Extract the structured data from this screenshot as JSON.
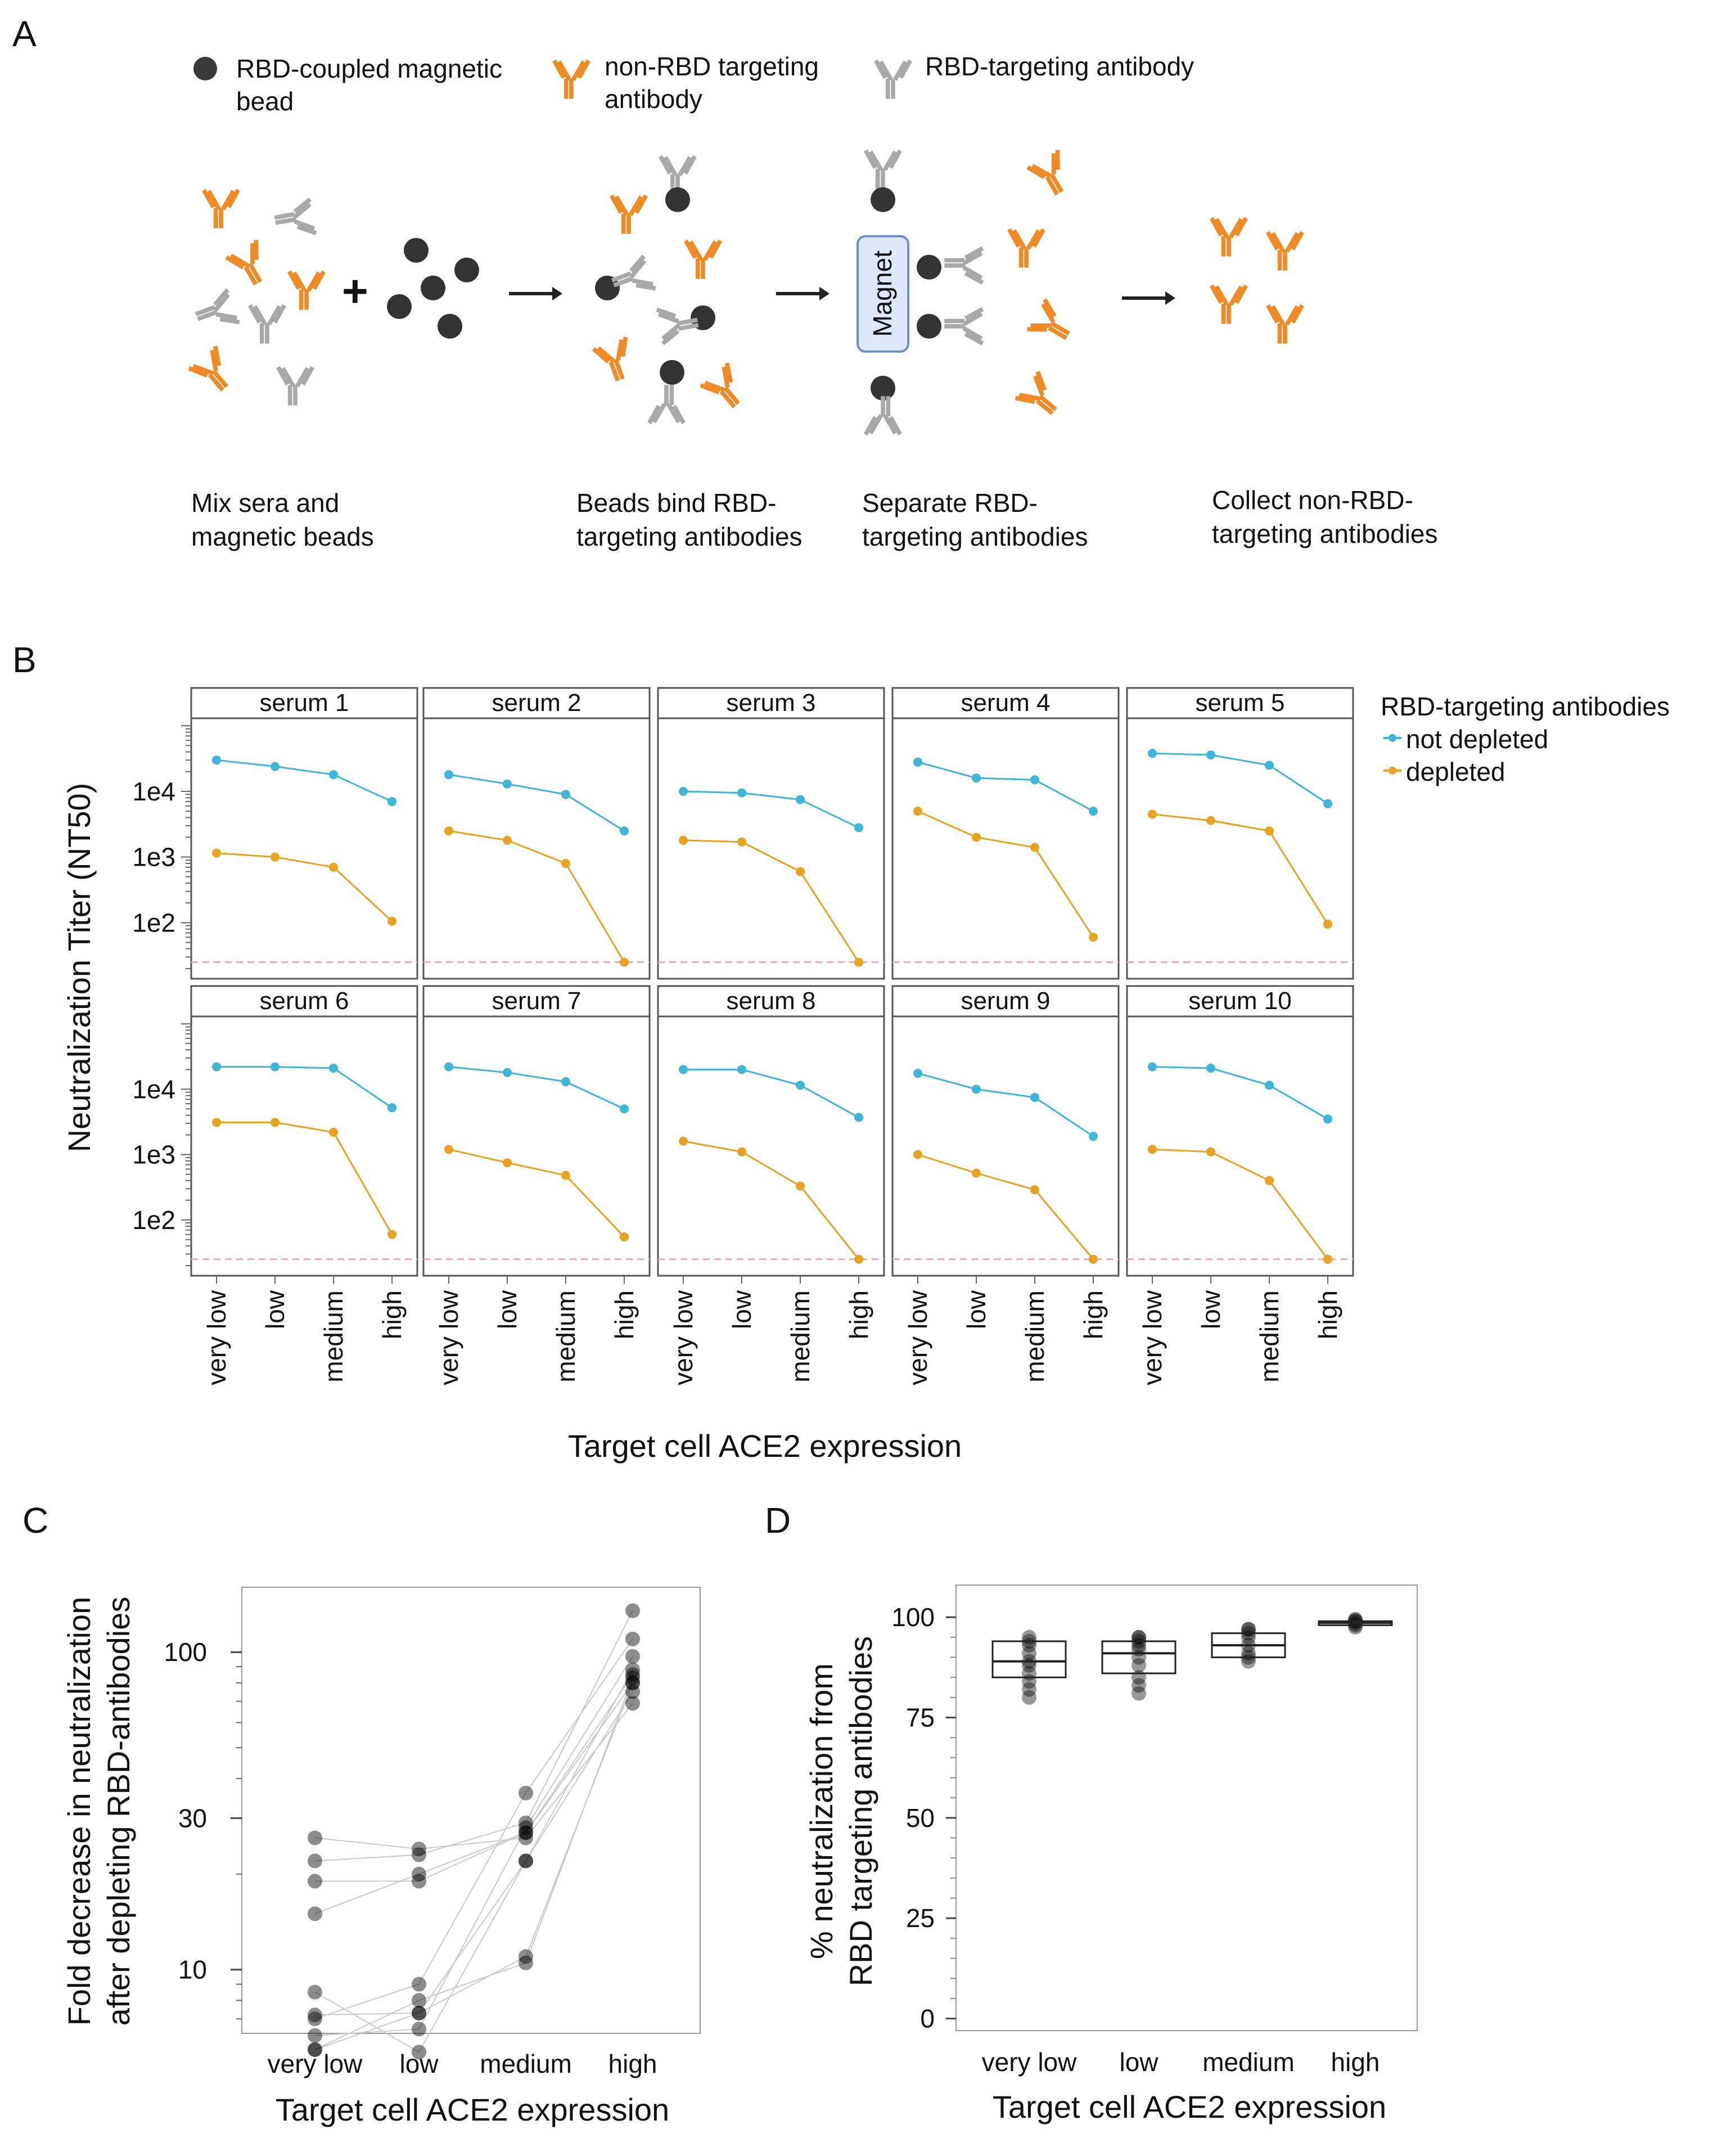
{
  "panels": {
    "a": "A",
    "b": "B",
    "c": "C",
    "d": "D"
  },
  "panel_a": {
    "legend": {
      "bead": [
        "RBD-coupled magnetic",
        "bead"
      ],
      "non_rbd": [
        "non-RBD targeting",
        "antibody"
      ],
      "rbd": "RBD-targeting antibody"
    },
    "magnet": "Magnet",
    "steps": [
      [
        "Mix sera and",
        "magnetic beads"
      ],
      [
        "Beads bind RBD-",
        "targeting antibodies"
      ],
      [
        "Separate RBD-",
        "targeting antibodies"
      ],
      [
        "Collect non-RBD-",
        "targeting antibodies"
      ]
    ],
    "plus": "+",
    "colors": {
      "orange": "#f08a24",
      "gray": "#a8a8a8",
      "bead": "#333333"
    }
  },
  "chart_data": [
    {
      "type": "line",
      "panel": "B",
      "facets": [
        "serum 1",
        "serum 2",
        "serum 3",
        "serum 4",
        "serum 5",
        "serum 6",
        "serum 7",
        "serum 8",
        "serum 9",
        "serum 10"
      ],
      "categories": [
        "very low",
        "low",
        "medium",
        "high"
      ],
      "ylabel": "Neutralization Titer (NT50)",
      "xlabel": "Target cell ACE2 expression",
      "yscale": "log",
      "ylim": [
        14,
        130000
      ],
      "yticks": [
        100,
        1000,
        10000
      ],
      "ytick_labels": [
        "1e2",
        "1e3",
        "1e4"
      ],
      "limit_of_detection": 25,
      "legend_title": "RBD-targeting antibodies",
      "series": [
        {
          "name": "not depleted",
          "color": "#3fb5d8",
          "values": [
            [
              30000,
              24000,
              18000,
              7000
            ],
            [
              18000,
              13000,
              9000,
              2500
            ],
            [
              10000,
              9500,
              7500,
              2800
            ],
            [
              28000,
              16000,
              15000,
              5000
            ],
            [
              38000,
              36000,
              25000,
              6500
            ],
            [
              22000,
              22000,
              21000,
              5200
            ],
            [
              22000,
              18000,
              13000,
              5000
            ],
            [
              20000,
              20000,
              11500,
              3700
            ],
            [
              17500,
              10000,
              7500,
              1900
            ],
            [
              22000,
              21000,
              11500,
              3500
            ]
          ]
        },
        {
          "name": "depleted",
          "color": "#e8a322",
          "values": [
            [
              1150,
              1000,
              700,
              105
            ],
            [
              2500,
              1800,
              800,
              25
            ],
            [
              1800,
              1700,
              600,
              25
            ],
            [
              5000,
              2000,
              1400,
              60
            ],
            [
              4500,
              3600,
              2500,
              95
            ],
            [
              3100,
              3100,
              2200,
              60
            ],
            [
              1200,
              750,
              480,
              55
            ],
            [
              1600,
              1100,
              330,
              25
            ],
            [
              1000,
              520,
              290,
              25
            ],
            [
              1200,
              1100,
              400,
              25
            ]
          ]
        }
      ]
    },
    {
      "type": "scatter",
      "panel": "C",
      "categories": [
        "very low",
        "low",
        "medium",
        "high"
      ],
      "ylabel_lines": [
        "Fold decrease in neutralization",
        "after depleting RBD-antibodies"
      ],
      "xlabel": "Target cell ACE2 expression",
      "yscale": "log",
      "ylim": [
        6.3,
        160
      ],
      "yticks": [
        10,
        30,
        100
      ],
      "ytick_labels": [
        "10",
        "30",
        "100"
      ],
      "series_per_serum": [
        [
          26,
          24,
          26,
          69
        ],
        [
          7.2,
          7.3,
          22,
          75
        ],
        [
          5.6,
          7.3,
          11,
          80
        ],
        [
          5.6,
          8,
          10.5,
          83
        ],
        [
          8.5,
          5.5,
          22,
          88
        ],
        [
          6.2,
          6.5,
          28,
          97
        ],
        [
          19,
          19,
          27,
          85
        ],
        [
          22,
          23,
          29,
          135
        ],
        [
          15,
          20,
          27,
          80
        ],
        [
          7,
          9,
          36,
          110
        ]
      ]
    },
    {
      "type": "box",
      "panel": "D",
      "categories": [
        "very low",
        "low",
        "medium",
        "high"
      ],
      "ylabel_lines": [
        "% neutralization from",
        "RBD targeting antibodies"
      ],
      "xlabel": "Target cell ACE2 expression",
      "ylim": [
        -3,
        108
      ],
      "yticks": [
        0,
        25,
        50,
        75,
        100
      ],
      "ytick_labels": [
        "0",
        "25",
        "50",
        "75",
        "100"
      ],
      "boxes": [
        {
          "q1": 85,
          "median": 89,
          "q3": 94,
          "points": [
            80,
            82,
            84,
            86,
            88,
            89,
            91,
            93,
            94,
            95
          ]
        },
        {
          "q1": 86,
          "median": 91,
          "q3": 94,
          "points": [
            81,
            83,
            85,
            88,
            90,
            92,
            93,
            94,
            95,
            95
          ]
        },
        {
          "q1": 90,
          "median": 93,
          "q3": 96,
          "points": [
            89,
            90,
            91,
            93,
            95,
            96,
            97,
            97
          ]
        },
        {
          "q1": 98,
          "median": 98.6,
          "q3": 99,
          "points": [
            97.5,
            98,
            98.5,
            99,
            99.2,
            99.5
          ]
        }
      ]
    }
  ]
}
